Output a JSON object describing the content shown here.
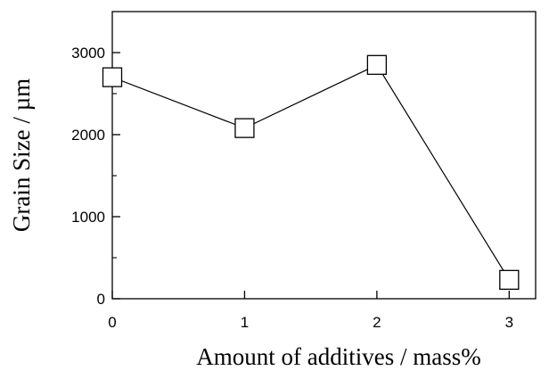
{
  "chart_data": {
    "type": "line",
    "title": "",
    "xlabel": "Amount of additives / mass%",
    "ylabel": "Grain Size / µm",
    "xlim": [
      0,
      3.2
    ],
    "ylim": [
      0,
      3500
    ],
    "xticks": [
      0,
      1,
      2,
      3
    ],
    "xtick_labels": [
      "0",
      "1",
      "2",
      "3"
    ],
    "yticks": [
      0,
      1000,
      2000,
      3000
    ],
    "ytick_labels": [
      "0",
      "1000",
      "2000",
      "3000"
    ],
    "yminor_ticks": [
      500,
      1500,
      2500
    ],
    "grid": false,
    "marker": "open-square",
    "series": [
      {
        "x": [
          0,
          1,
          2,
          3
        ],
        "values": [
          2700,
          2080,
          2850,
          230
        ]
      }
    ]
  }
}
